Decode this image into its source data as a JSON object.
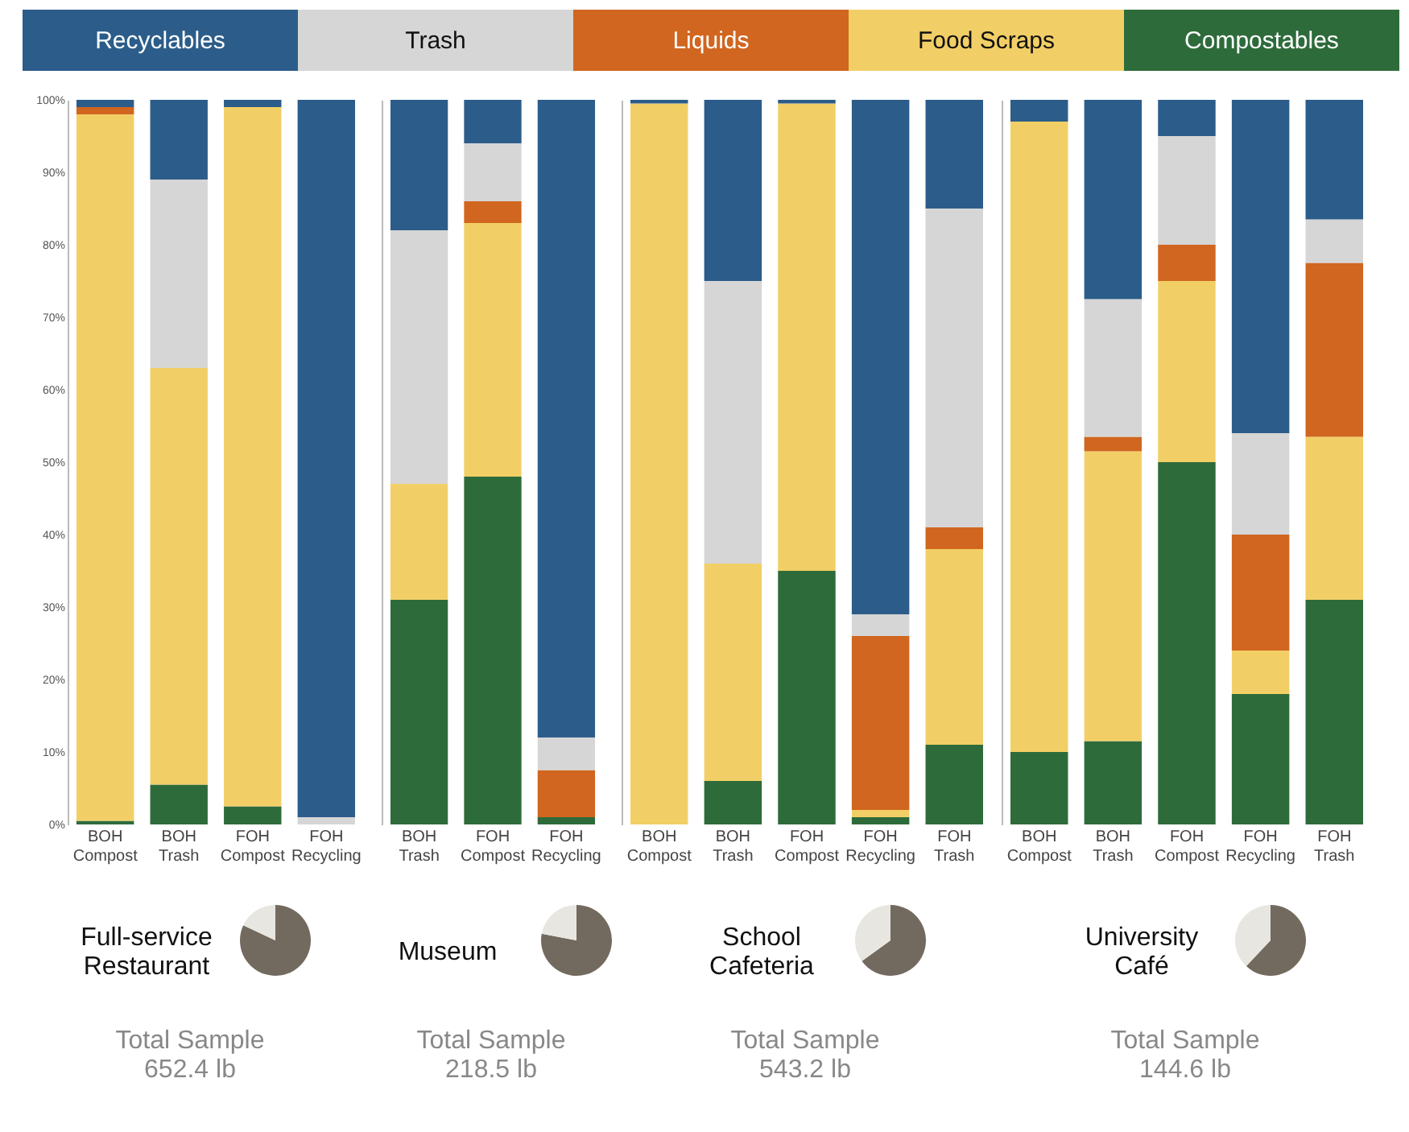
{
  "chart_data": [
    {
      "type": "bar",
      "stacked": true,
      "legend": "top",
      "categories": [
        "BOH Compost",
        "BOH Trash",
        "FOH Compost",
        "FOH Recycling"
      ],
      "ylim": [
        0,
        100
      ],
      "yticks": [
        {
          "value": 0,
          "label": "0%"
        },
        {
          "value": 10,
          "label": "10%"
        },
        {
          "value": 20,
          "label": "20%"
        },
        {
          "value": 30,
          "label": "30%"
        },
        {
          "value": 40,
          "label": "40%"
        },
        {
          "value": 50,
          "label": "50%"
        },
        {
          "value": 60,
          "label": "60%"
        },
        {
          "value": 70,
          "label": "70%"
        },
        {
          "value": 80,
          "label": "80%"
        },
        {
          "value": 90,
          "label": "90%"
        },
        {
          "value": 100,
          "label": "100%"
        }
      ],
      "series": [
        {
          "name": "Compostables",
          "color": "#2e6b3b",
          "values": [
            0.5,
            5.5,
            2.5,
            0
          ]
        },
        {
          "name": "Food Scraps",
          "color": "#f2cf66",
          "values": [
            97.5,
            57.5,
            96.5,
            0
          ]
        },
        {
          "name": "Liquids",
          "color": "#d0661f",
          "values": [
            1,
            0,
            0,
            0
          ]
        },
        {
          "name": "Trash",
          "color": "#d6d6d6",
          "values": [
            0,
            26,
            0,
            1
          ]
        },
        {
          "name": "Recyclables",
          "color": "#2c5d8a",
          "values": [
            1,
            11,
            1,
            99
          ]
        }
      ]
    },
    {
      "type": "pie",
      "title": "Full-service Restaurant",
      "annotations": [
        "Total Sample 652.4 lb"
      ],
      "categories": [
        null,
        null
      ],
      "values": [
        82,
        18
      ],
      "colors": [
        "#736a5f",
        "#e8e6e1"
      ]
    },
    {
      "type": "bar",
      "stacked": true,
      "tick_labels": "x",
      "categories": [
        "BOH Trash",
        "FOH Compost",
        "FOH Recycling"
      ],
      "ylim": [
        0,
        100
      ],
      "series": [
        {
          "color": "#2e6b3b",
          "values": [
            31,
            48,
            1
          ]
        },
        {
          "color": "#f2cf66",
          "values": [
            16,
            35,
            0
          ]
        },
        {
          "color": "#d0661f",
          "values": [
            0,
            3,
            6.5
          ]
        },
        {
          "color": "#d6d6d6",
          "values": [
            35,
            8,
            4.5
          ]
        },
        {
          "color": "#2c5d8a",
          "values": [
            18,
            6,
            88
          ]
        }
      ]
    },
    {
      "type": "pie",
      "title": "Museum",
      "annotations": [
        "Total Sample 218.5 lb"
      ],
      "categories": [
        null,
        null
      ],
      "values": [
        78,
        22
      ],
      "colors": [
        "#736a5f",
        "#e8e6e1"
      ]
    },
    {
      "type": "bar",
      "stacked": true,
      "tick_labels": "x",
      "categories": [
        "BOH Compost",
        "BOH Trash",
        "FOH Compost",
        "FOH Recycling",
        "FOH Trash"
      ],
      "ylim": [
        0,
        100
      ],
      "series": [
        {
          "color": "#2e6b3b",
          "values": [
            0,
            6,
            35,
            1,
            11
          ]
        },
        {
          "color": "#f2cf66",
          "values": [
            99.5,
            30,
            64.5,
            1,
            27
          ]
        },
        {
          "color": "#d0661f",
          "values": [
            0,
            0,
            0,
            24,
            3
          ]
        },
        {
          "color": "#d6d6d6",
          "values": [
            0,
            39,
            0,
            3,
            44
          ]
        },
        {
          "color": "#2c5d8a",
          "values": [
            0.5,
            25,
            0.5,
            71,
            15
          ]
        }
      ]
    },
    {
      "type": "pie",
      "title": "School Cafeteria",
      "annotations": [
        "Total Sample 543.2 lb"
      ],
      "categories": [
        null,
        null
      ],
      "values": [
        65,
        35
      ],
      "colors": [
        "#736a5f",
        "#e8e6e1"
      ]
    },
    {
      "type": "bar",
      "stacked": true,
      "tick_labels": "x",
      "categories": [
        "BOH Compost",
        "BOH Trash",
        "FOH Compost",
        "FOH Recycling",
        "FOH Trash"
      ],
      "ylim": [
        0,
        100
      ],
      "series": [
        {
          "color": "#2e6b3b",
          "values": [
            10,
            11.5,
            50,
            18,
            31
          ]
        },
        {
          "color": "#f2cf66",
          "values": [
            87,
            40,
            25,
            6,
            22.5
          ]
        },
        {
          "color": "#d0661f",
          "values": [
            0,
            2,
            5,
            16,
            24
          ]
        },
        {
          "color": "#d6d6d6",
          "values": [
            0,
            19,
            15,
            14,
            6
          ]
        },
        {
          "color": "#2c5d8a",
          "values": [
            3,
            27.5,
            5,
            46,
            16.5
          ]
        }
      ]
    },
    {
      "type": "pie",
      "title": "University Café",
      "annotations": [
        "Total Sample 144.6 lb"
      ],
      "categories": [
        null,
        null
      ],
      "values": [
        62,
        38
      ],
      "colors": [
        "#736a5f",
        "#e8e6e1"
      ]
    }
  ]
}
